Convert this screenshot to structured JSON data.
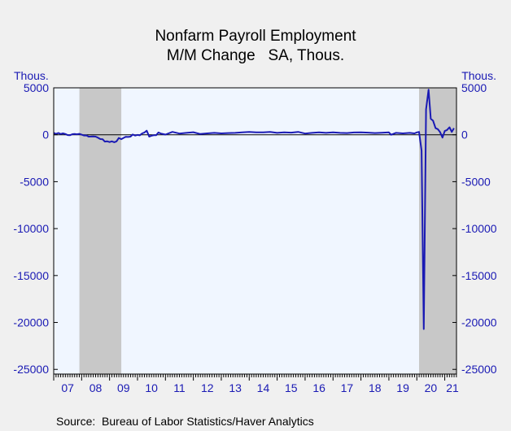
{
  "chart_data": {
    "type": "line",
    "title": "Nonfarm Payroll Employment",
    "subtitle": "M/M Change   SA, Thous.",
    "ylabel_left": "Thous.",
    "ylabel_right": "Thous.",
    "source": "Source:  Bureau of Labor Statistics/Haver Analytics",
    "ylim": [
      -25500,
      5000
    ],
    "yticks": [
      5000,
      0,
      -5000,
      -10000,
      -15000,
      -20000,
      -25000
    ],
    "ytick_labels": [
      "5000",
      "0",
      "-5000",
      "-10000",
      "-15000",
      "-20000",
      "-25000"
    ],
    "xlim": [
      2007.0,
      2021.42
    ],
    "xtick_labels": [
      "07",
      "08",
      "09",
      "10",
      "11",
      "12",
      "13",
      "14",
      "15",
      "16",
      "17",
      "18",
      "19",
      "20",
      "21"
    ],
    "recessions": [
      [
        2007.92,
        2009.42
      ],
      [
        2020.08,
        2021.42
      ]
    ],
    "grid": false,
    "zero_line": true,
    "colors": {
      "line": "#1a1ab4",
      "plot_bg": "#f0f6ff",
      "recession": "#c8c8c8",
      "page_bg": "#f0f0f0",
      "axis_text": "#1a1ab4"
    },
    "series": [
      {
        "x": [
          2007.0,
          2007.08,
          2007.17,
          2007.25,
          2007.33,
          2007.42,
          2007.5,
          2007.58,
          2007.67,
          2007.75,
          2007.83,
          2007.92,
          2008.0,
          2008.08,
          2008.17,
          2008.25,
          2008.33,
          2008.42,
          2008.5,
          2008.58,
          2008.67,
          2008.75,
          2008.83,
          2008.92,
          2009.0,
          2009.08,
          2009.17,
          2009.25,
          2009.33,
          2009.42,
          2009.5,
          2009.58,
          2009.67,
          2009.75,
          2009.83,
          2009.92,
          2010.0,
          2010.08,
          2010.17,
          2010.25,
          2010.33,
          2010.42,
          2010.5,
          2010.58,
          2010.67,
          2010.75,
          2010.83,
          2010.92,
          2011.0,
          2011.25,
          2011.5,
          2011.75,
          2012.0,
          2012.25,
          2012.5,
          2012.75,
          2013.0,
          2013.25,
          2013.5,
          2013.75,
          2014.0,
          2014.25,
          2014.5,
          2014.75,
          2015.0,
          2015.25,
          2015.5,
          2015.75,
          2016.0,
          2016.25,
          2016.5,
          2016.75,
          2017.0,
          2017.25,
          2017.5,
          2017.75,
          2018.0,
          2018.25,
          2018.5,
          2018.75,
          2019.0,
          2019.08,
          2019.25,
          2019.5,
          2019.75,
          2019.92,
          2020.0,
          2020.08,
          2020.17,
          2020.25,
          2020.33,
          2020.42,
          2020.5,
          2020.58,
          2020.67,
          2020.75,
          2020.83,
          2020.92,
          2021.0,
          2021.08,
          2021.17,
          2021.25,
          2021.33
        ],
        "y": [
          200,
          90,
          190,
          80,
          150,
          80,
          -30,
          -50,
          60,
          90,
          50,
          100,
          10,
          -80,
          -70,
          -200,
          -190,
          -170,
          -200,
          -300,
          -460,
          -480,
          -730,
          -700,
          -780,
          -700,
          -800,
          -700,
          -350,
          -470,
          -340,
          -220,
          -230,
          -200,
          30,
          -90,
          -20,
          -60,
          150,
          240,
          430,
          -200,
          -100,
          -50,
          -50,
          240,
          130,
          70,
          20,
          300,
          130,
          200,
          270,
          80,
          150,
          200,
          150,
          180,
          200,
          250,
          300,
          250,
          250,
          300,
          200,
          250,
          230,
          300,
          130,
          200,
          250,
          200,
          250,
          200,
          180,
          240,
          250,
          230,
          180,
          220,
          250,
          0,
          200,
          150,
          200,
          150,
          250,
          300,
          -1700,
          -20700,
          2700,
          4800,
          1700,
          1500,
          700,
          600,
          300,
          -300,
          400,
          500,
          800,
          300,
          700
        ]
      }
    ]
  }
}
